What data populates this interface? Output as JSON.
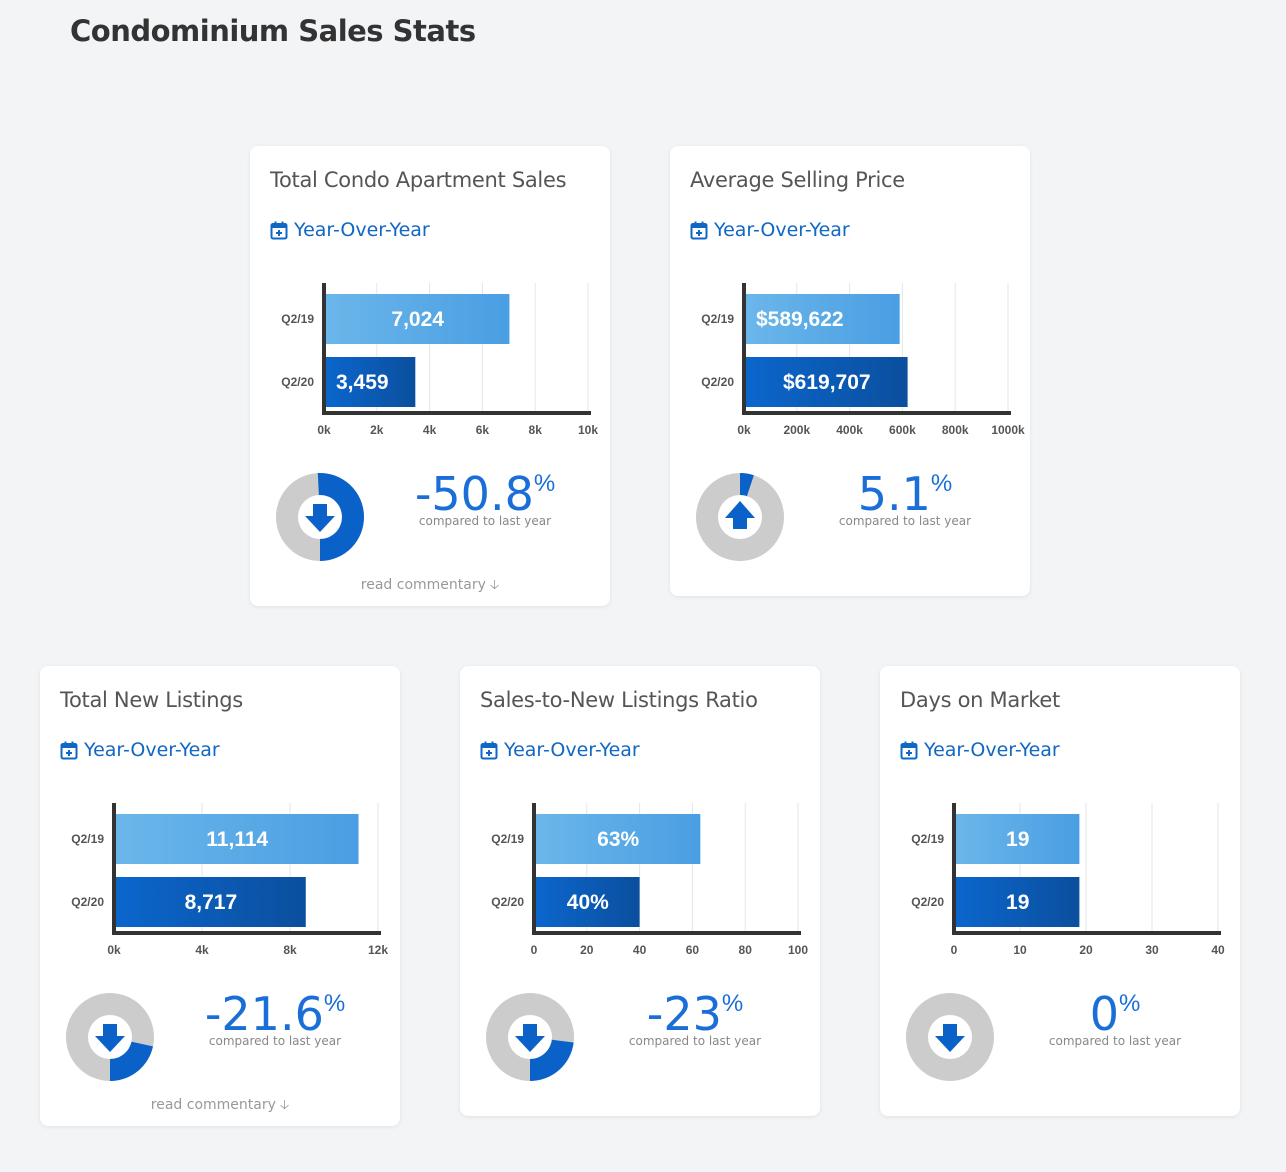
{
  "page": {
    "title": "Condominium Sales Stats"
  },
  "cards": [
    {
      "title": "Total Condo Apartment Sales",
      "period": "Year-Over-Year",
      "change_value": "-50.8",
      "change_unit": "%",
      "change_caption": "compared to last year",
      "change_direction": "down",
      "commentary": "read commentary"
    },
    {
      "title": "Average Selling Price",
      "period": "Year-Over-Year",
      "change_value": "5.1",
      "change_unit": "%",
      "change_caption": "compared to last year",
      "change_direction": "up",
      "commentary": ""
    },
    {
      "title": "Total New Listings",
      "period": "Year-Over-Year",
      "change_value": "-21.6",
      "change_unit": "%",
      "change_caption": "compared to last year",
      "change_direction": "down",
      "commentary": "read commentary"
    },
    {
      "title": "Sales-to-New Listings Ratio",
      "period": "Year-Over-Year",
      "change_value": "-23",
      "change_unit": "%",
      "change_caption": "compared to last year",
      "change_direction": "down",
      "commentary": ""
    },
    {
      "title": "Days on Market",
      "period": "Year-Over-Year",
      "change_value": "0",
      "change_unit": "%",
      "change_caption": "compared to last year",
      "change_direction": "down",
      "commentary": ""
    }
  ],
  "colors": {
    "bar_light": "#4a9ee3",
    "bar_dark": "#0a5ab5",
    "accent": "#1a6ed8",
    "donut_track": "#cccccc",
    "donut_fill": "#0a62c9"
  },
  "chart_data": [
    {
      "type": "bar",
      "orientation": "horizontal",
      "categories": [
        "Q2/19",
        "Q2/20"
      ],
      "values": [
        7024,
        3459
      ],
      "value_labels": [
        "7,024",
        "3,459"
      ],
      "xlim": [
        0,
        10000
      ],
      "xticks": [
        0,
        2000,
        4000,
        6000,
        8000,
        10000
      ],
      "xtick_labels": [
        "0k",
        "2k",
        "4k",
        "6k",
        "8k",
        "10k"
      ],
      "grid": true,
      "donut_percent": 50.8
    },
    {
      "type": "bar",
      "orientation": "horizontal",
      "categories": [
        "Q2/19",
        "Q2/20"
      ],
      "values": [
        589622,
        619707
      ],
      "value_labels": [
        "$589,622",
        "$619,707"
      ],
      "xlim": [
        0,
        1000000
      ],
      "xticks": [
        0,
        200000,
        400000,
        600000,
        800000,
        1000000
      ],
      "xtick_labels": [
        "0k",
        "200k",
        "400k",
        "600k",
        "800k",
        "1000k"
      ],
      "grid": true,
      "donut_percent": 5.1
    },
    {
      "type": "bar",
      "orientation": "horizontal",
      "categories": [
        "Q2/19",
        "Q2/20"
      ],
      "values": [
        11114,
        8717
      ],
      "value_labels": [
        "11,114",
        "8,717"
      ],
      "xlim": [
        0,
        12000
      ],
      "xticks": [
        0,
        4000,
        8000,
        12000
      ],
      "xtick_labels": [
        "0k",
        "4k",
        "8k",
        "12k"
      ],
      "grid": true,
      "donut_percent": 21.6
    },
    {
      "type": "bar",
      "orientation": "horizontal",
      "categories": [
        "Q2/19",
        "Q2/20"
      ],
      "values": [
        63,
        40
      ],
      "value_labels": [
        "63%",
        "40%"
      ],
      "xlim": [
        0,
        100
      ],
      "xticks": [
        0,
        20,
        40,
        60,
        80,
        100
      ],
      "xtick_labels": [
        "0",
        "20",
        "40",
        "60",
        "80",
        "100"
      ],
      "grid": true,
      "donut_percent": 23
    },
    {
      "type": "bar",
      "orientation": "horizontal",
      "categories": [
        "Q2/19",
        "Q2/20"
      ],
      "values": [
        19,
        19
      ],
      "value_labels": [
        "19",
        "19"
      ],
      "xlim": [
        0,
        40
      ],
      "xticks": [
        0,
        10,
        20,
        30,
        40
      ],
      "xtick_labels": [
        "0",
        "10",
        "20",
        "30",
        "40"
      ],
      "grid": true,
      "donut_percent": 0
    }
  ]
}
